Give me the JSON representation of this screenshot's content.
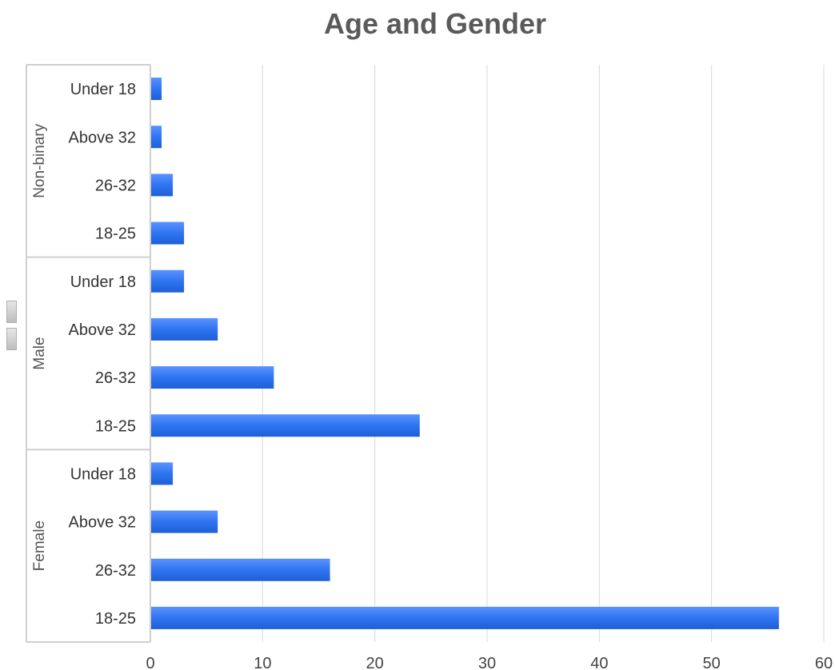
{
  "chart_data": {
    "type": "bar",
    "orientation": "horizontal",
    "title": "Age and Gender",
    "xlim": [
      0,
      60
    ],
    "xticks": [
      0,
      10,
      20,
      30,
      40,
      50,
      60
    ],
    "grid": true,
    "bar_color": "#2f74f0",
    "groups": [
      {
        "name": "Non-binary",
        "categories": [
          {
            "label": "Under 18",
            "value": 1
          },
          {
            "label": "Above 32",
            "value": 1
          },
          {
            "label": "26-32",
            "value": 2
          },
          {
            "label": "18-25",
            "value": 3
          }
        ]
      },
      {
        "name": "Male",
        "categories": [
          {
            "label": "Under 18",
            "value": 3
          },
          {
            "label": "Above 32",
            "value": 6
          },
          {
            "label": "26-32",
            "value": 11
          },
          {
            "label": "18-25",
            "value": 24
          }
        ]
      },
      {
        "name": "Female",
        "categories": [
          {
            "label": "Under 18",
            "value": 2
          },
          {
            "label": "Above 32",
            "value": 6
          },
          {
            "label": "26-32",
            "value": 16
          },
          {
            "label": "18-25",
            "value": 56
          }
        ]
      }
    ]
  }
}
